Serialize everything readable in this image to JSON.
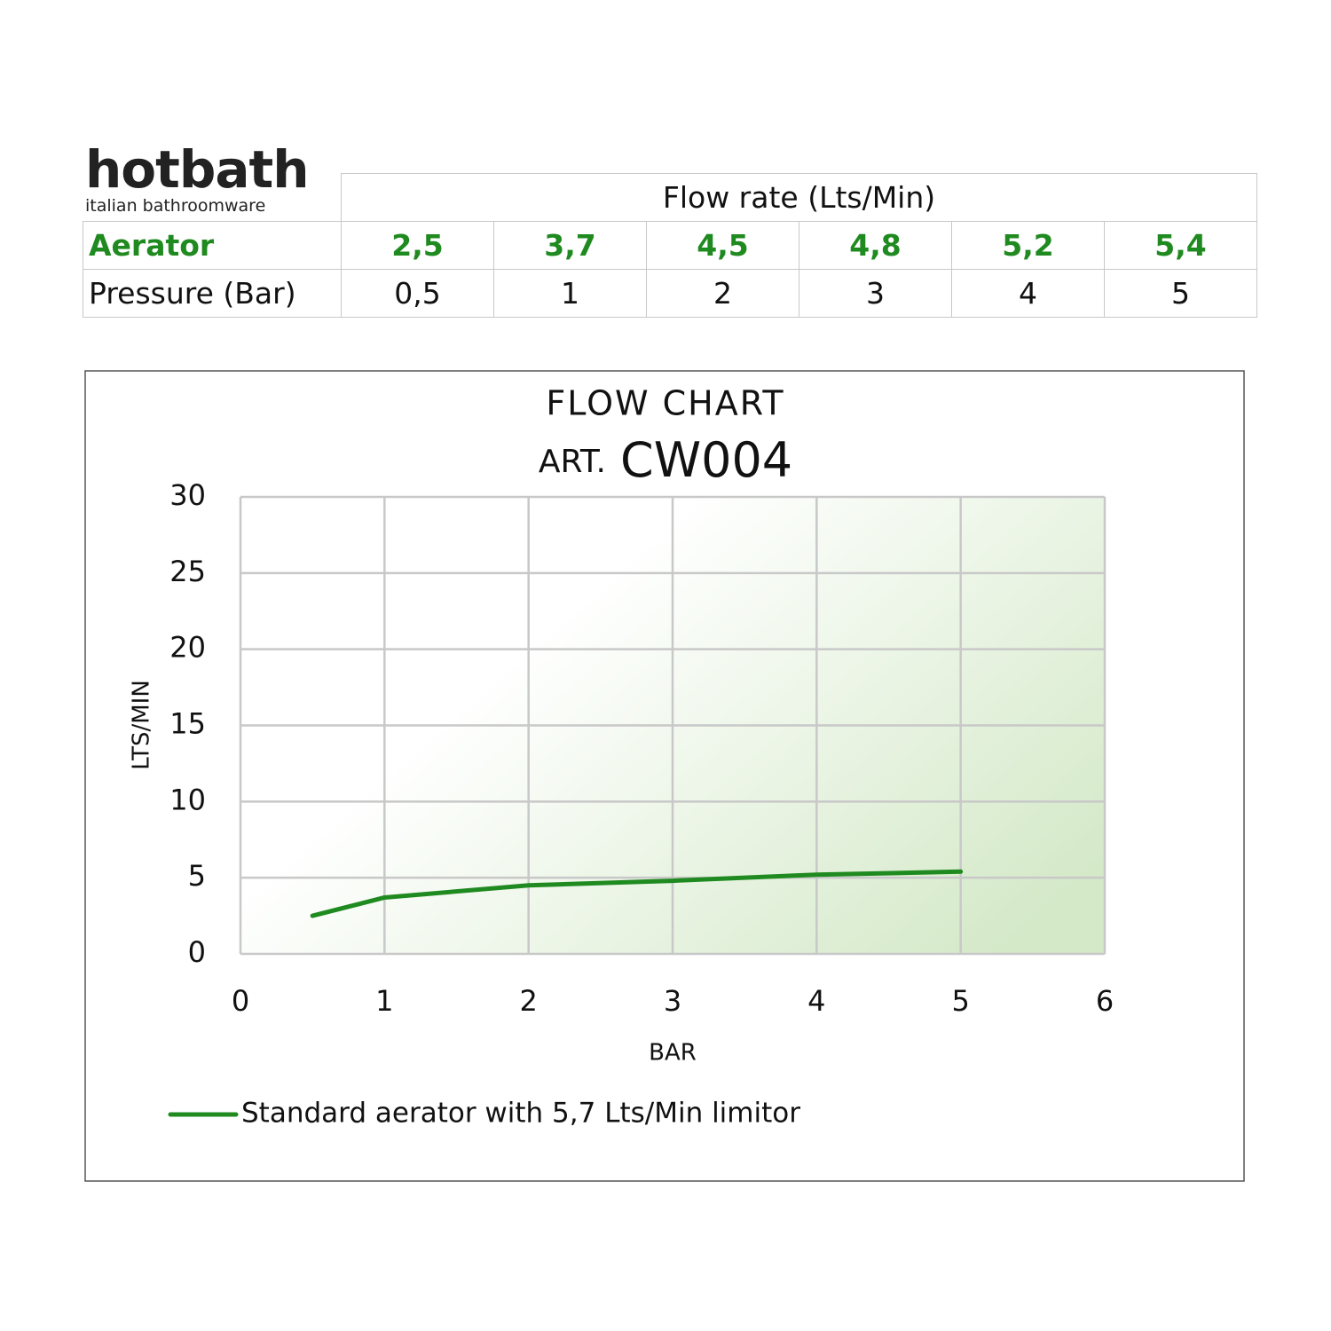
{
  "logo": {
    "name": "hotbath",
    "tagline": "italian bathroomware"
  },
  "table": {
    "header": "Flow rate (Lts/Min)",
    "rows": [
      [
        "Aerator",
        "2,5",
        "3,7",
        "4,5",
        "4,8",
        "5,2",
        "5,4"
      ],
      [
        "Pressure (Bar)",
        "0,5",
        "1",
        "2",
        "3",
        "4",
        "5"
      ]
    ]
  },
  "chart_data": {
    "type": "line",
    "title": "FLOW CHART",
    "subtitle": [
      "ART.",
      "CW004"
    ],
    "x_label": "BAR",
    "y_label": "LTS/MIN",
    "x": [
      0.5,
      1,
      2,
      3,
      4,
      5
    ],
    "series": [
      {
        "name": "Standard aerator with 5,7 Lts/Min limitor",
        "color": "#1f8a1f",
        "values": [
          2.5,
          3.7,
          4.5,
          4.8,
          5.2,
          5.4
        ]
      }
    ],
    "xlim": [
      0,
      6
    ],
    "xticks": [
      0,
      1,
      2,
      3,
      4,
      5,
      6
    ],
    "ylim": [
      0,
      30
    ],
    "yticks": [
      0,
      5,
      10,
      15,
      20,
      25,
      30
    ],
    "grid": true
  }
}
